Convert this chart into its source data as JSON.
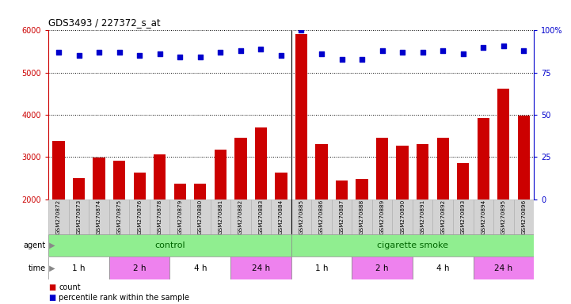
{
  "title": "GDS3493 / 227372_s_at",
  "samples": [
    "GSM270872",
    "GSM270873",
    "GSM270874",
    "GSM270875",
    "GSM270876",
    "GSM270878",
    "GSM270879",
    "GSM270880",
    "GSM270881",
    "GSM270882",
    "GSM270883",
    "GSM270884",
    "GSM270885",
    "GSM270886",
    "GSM270887",
    "GSM270888",
    "GSM270889",
    "GSM270890",
    "GSM270891",
    "GSM270892",
    "GSM270893",
    "GSM270894",
    "GSM270895",
    "GSM270896"
  ],
  "counts": [
    3380,
    2490,
    2990,
    2920,
    2620,
    3070,
    2360,
    2360,
    3170,
    3460,
    3700,
    2620,
    5920,
    3300,
    2440,
    2470,
    3450,
    3260,
    3300,
    3450,
    2860,
    3920,
    4620,
    3980
  ],
  "percentile_ranks": [
    87,
    85,
    87,
    87,
    85,
    86,
    84,
    84,
    87,
    88,
    89,
    85,
    100,
    86,
    83,
    83,
    88,
    87,
    87,
    88,
    86,
    90,
    91,
    88
  ],
  "bar_color": "#cc0000",
  "dot_color": "#0000cc",
  "ylim_left": [
    2000,
    6000
  ],
  "ylim_right": [
    0,
    100
  ],
  "yticks_left": [
    2000,
    3000,
    4000,
    5000,
    6000
  ],
  "yticks_right": [
    0,
    25,
    50,
    75,
    100
  ],
  "agent_color": "#90ee90",
  "time_colors": [
    "#ffffff",
    "#ee82ee",
    "#ffffff",
    "#ee82ee",
    "#ffffff",
    "#ee82ee",
    "#ffffff",
    "#ee82ee"
  ],
  "time_groups": [
    {
      "label": "1 h",
      "start": 0,
      "end": 3
    },
    {
      "label": "2 h",
      "start": 3,
      "end": 6
    },
    {
      "label": "4 h",
      "start": 6,
      "end": 9
    },
    {
      "label": "24 h",
      "start": 9,
      "end": 12
    },
    {
      "label": "1 h",
      "start": 12,
      "end": 15
    },
    {
      "label": "2 h",
      "start": 15,
      "end": 18
    },
    {
      "label": "4 h",
      "start": 18,
      "end": 21
    },
    {
      "label": "24 h",
      "start": 21,
      "end": 24
    }
  ],
  "grid_color": "#000000",
  "bg_color": "#ffffff",
  "xticklabel_bg": "#d3d3d3",
  "left_axis_color": "#cc0000",
  "right_axis_color": "#0000cc",
  "label_area_color": "#f0f0f0"
}
